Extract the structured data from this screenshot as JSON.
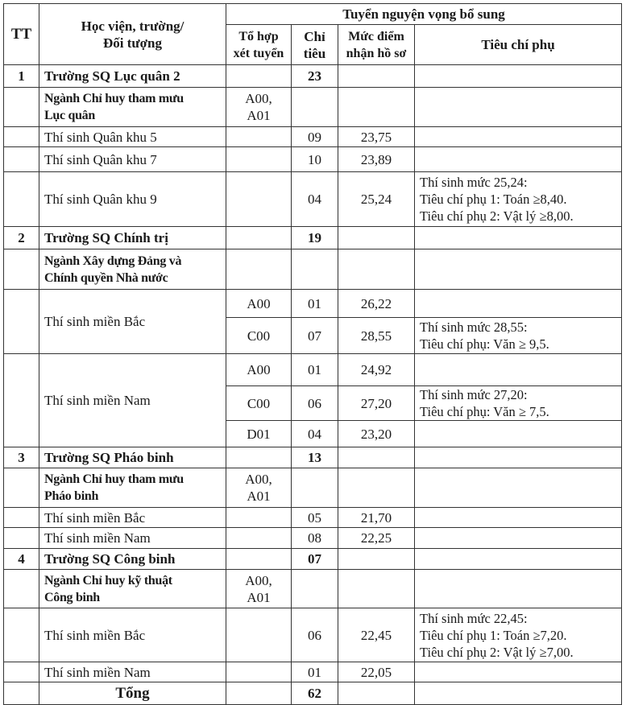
{
  "header": {
    "tt": "TT",
    "name": "Học viện, trường/\nĐối tượng",
    "group": "Tuyển nguyện vọng bổ sung",
    "combo": "Tổ hợp\nxét tuyển",
    "quota": "Chỉ\ntiêu",
    "score": "Mức điểm\nnhận hồ sơ",
    "criteria": "Tiêu chí phụ"
  },
  "schools": [
    {
      "tt": "1",
      "name": "Trường SQ Lục quân 2",
      "quota": "23",
      "majors": [
        {
          "name": "Ngành Chỉ huy tham mưu\nLục quân",
          "combo": "A00,\nA01",
          "groups": [
            {
              "name": "Thí sinh Quân khu 5",
              "subrows": [
                {
                  "combo": "",
                  "quota": "09",
                  "score": "23,75",
                  "criteria": ""
                }
              ]
            },
            {
              "name": "Thí sinh Quân khu 7",
              "subrows": [
                {
                  "combo": "",
                  "quota": "10",
                  "score": "23,89",
                  "criteria": ""
                }
              ]
            },
            {
              "name": "Thí sinh Quân khu 9",
              "subrows": [
                {
                  "combo": "",
                  "quota": "04",
                  "score": "25,24",
                  "criteria": "Thí sinh mức 25,24:\nTiêu chí phụ 1: Toán ≥8,40.\nTiêu chí phụ 2: Vật lý ≥8,00."
                }
              ]
            }
          ]
        }
      ]
    },
    {
      "tt": "2",
      "name": "Trường SQ Chính trị",
      "quota": "19",
      "majors": [
        {
          "name": "Ngành Xây dựng Đảng và\nChính quyền Nhà nước",
          "combo": "",
          "groups": [
            {
              "name": "Thí sinh miền Bắc",
              "subrows": [
                {
                  "combo": "A00",
                  "quota": "01",
                  "score": "26,22",
                  "criteria": ""
                },
                {
                  "combo": "C00",
                  "quota": "07",
                  "score": "28,55",
                  "criteria": "Thí sinh mức 28,55:\nTiêu chí phụ: Văn ≥ 9,5."
                }
              ]
            },
            {
              "name": "Thí sinh miền Nam",
              "subrows": [
                {
                  "combo": "A00",
                  "quota": "01",
                  "score": "24,92",
                  "criteria": ""
                },
                {
                  "combo": "C00",
                  "quota": "06",
                  "score": "27,20",
                  "criteria": "Thí sinh mức 27,20:\nTiêu chí phụ: Văn ≥ 7,5."
                },
                {
                  "combo": "D01",
                  "quota": "04",
                  "score": "23,20",
                  "criteria": ""
                }
              ]
            }
          ]
        }
      ]
    },
    {
      "tt": "3",
      "name": "Trường SQ Pháo binh",
      "quota": "13",
      "majors": [
        {
          "name": "Ngành Chỉ huy tham mưu\nPháo binh",
          "combo": "A00,\nA01",
          "groups": [
            {
              "name": "Thí sinh miền Bắc",
              "subrows": [
                {
                  "combo": "",
                  "quota": "05",
                  "score": "21,70",
                  "criteria": ""
                }
              ]
            },
            {
              "name": "Thí sinh miền Nam",
              "subrows": [
                {
                  "combo": "",
                  "quota": "08",
                  "score": "22,25",
                  "criteria": ""
                }
              ]
            }
          ]
        }
      ]
    },
    {
      "tt": "4",
      "name": "Trường SQ Công binh",
      "quota": "07",
      "majors": [
        {
          "name": "Ngành Chỉ huy kỹ thuật\nCông binh",
          "combo": "A00,\nA01",
          "groups": [
            {
              "name": "Thí sinh miền Bắc",
              "subrows": [
                {
                  "combo": "",
                  "quota": "06",
                  "score": "22,45",
                  "criteria": "Thí sinh mức 22,45:\nTiêu chí phụ 1: Toán ≥7,20.\nTiêu chí phụ 2: Vật lý ≥7,00."
                }
              ]
            },
            {
              "name": "Thí sinh miền Nam",
              "subrows": [
                {
                  "combo": "",
                  "quota": "01",
                  "score": "22,05",
                  "criteria": ""
                }
              ]
            }
          ]
        }
      ]
    }
  ],
  "total": {
    "label": "Tổng",
    "quota": "62"
  }
}
